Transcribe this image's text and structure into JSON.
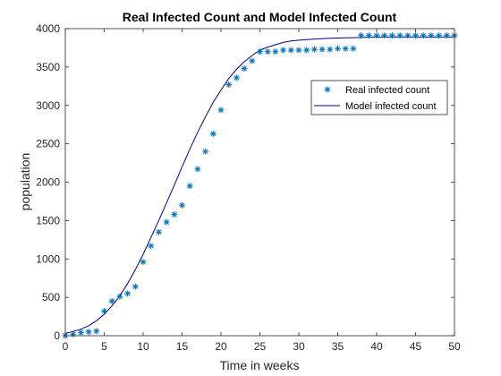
{
  "chart_data": {
    "type": "line",
    "title": "Real Infected Count and Model Infected Count",
    "xlabel": "Time in weeks",
    "ylabel": "population",
    "xlim": [
      0,
      50
    ],
    "ylim": [
      0,
      4000
    ],
    "xticks": [
      0,
      5,
      10,
      15,
      20,
      25,
      30,
      35,
      40,
      45,
      50
    ],
    "yticks": [
      0,
      500,
      1000,
      1500,
      2000,
      2500,
      3000,
      3500,
      4000
    ],
    "grid": false,
    "legend_position": "top-right",
    "series": [
      {
        "name": "Real infected count",
        "kind": "scatter",
        "marker": "asterisk",
        "color": "#0072BD",
        "x": [
          0,
          1,
          2,
          3,
          4,
          5,
          6,
          7,
          8,
          9,
          10,
          11,
          12,
          13,
          14,
          15,
          16,
          17,
          18,
          19,
          20,
          21,
          22,
          23,
          24,
          25,
          26,
          27,
          28,
          29,
          30,
          31,
          32,
          33,
          34,
          35,
          36,
          37,
          38,
          39,
          40,
          41,
          42,
          43,
          44,
          45,
          46,
          47,
          48,
          49,
          50
        ],
        "y": [
          0,
          20,
          40,
          50,
          60,
          320,
          450,
          510,
          550,
          640,
          960,
          1170,
          1350,
          1480,
          1580,
          1700,
          1950,
          2170,
          2400,
          2630,
          2940,
          3270,
          3360,
          3480,
          3580,
          3700,
          3700,
          3700,
          3720,
          3720,
          3720,
          3720,
          3730,
          3730,
          3730,
          3740,
          3740,
          3740,
          3910,
          3910,
          3910,
          3910,
          3910,
          3910,
          3910,
          3910,
          3910,
          3910,
          3910,
          3910,
          3910
        ]
      },
      {
        "name": "Model infected count",
        "kind": "line",
        "color": "#00008B",
        "x": [
          0,
          1,
          2,
          3,
          4,
          5,
          6,
          7,
          8,
          9,
          10,
          11,
          12,
          13,
          14,
          15,
          16,
          17,
          18,
          19,
          20,
          21,
          22,
          23,
          24,
          25,
          26,
          27,
          28,
          29,
          30,
          32,
          34,
          36,
          38,
          40,
          42,
          44,
          46,
          48,
          50
        ],
        "y": [
          30,
          55,
          85,
          130,
          195,
          280,
          390,
          520,
          680,
          860,
          1060,
          1280,
          1500,
          1730,
          1960,
          2200,
          2430,
          2650,
          2850,
          3040,
          3200,
          3350,
          3470,
          3570,
          3650,
          3720,
          3760,
          3790,
          3820,
          3840,
          3850,
          3865,
          3875,
          3880,
          3885,
          3890,
          3890,
          3890,
          3890,
          3890,
          3890
        ]
      }
    ]
  }
}
